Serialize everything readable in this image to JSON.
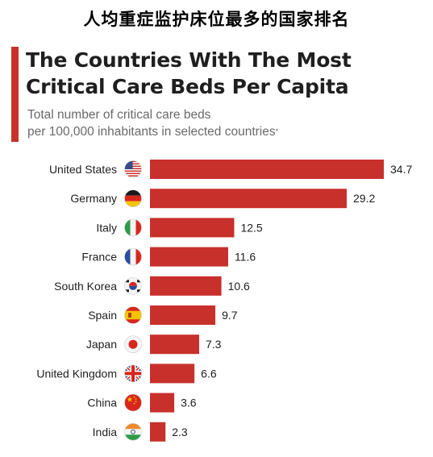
{
  "caption": "人均重症监护床位最多的国家排名",
  "chart_data": {
    "type": "bar",
    "orientation": "horizontal",
    "title_lines": [
      "The Countries With The Most",
      "Critical Care Beds Per Capita"
    ],
    "subtitle_lines": [
      "Total number of critical care beds",
      "per 100,000 inhabitants in selected countries"
    ],
    "subtitle_footnote_mark": "*",
    "categories": [
      "United States",
      "Germany",
      "Italy",
      "France",
      "South Korea",
      "Spain",
      "Japan",
      "United Kingdom",
      "China",
      "India"
    ],
    "values": [
      34.7,
      29.2,
      12.5,
      11.6,
      10.6,
      9.7,
      7.3,
      6.6,
      3.6,
      2.3
    ],
    "value_labels": [
      "34.7",
      "29.2",
      "12.5",
      "11.6",
      "10.6",
      "9.7",
      "7.3",
      "6.6",
      "3.6",
      "2.3"
    ],
    "flag_icons": [
      "us-flag-icon",
      "germany-flag-icon",
      "italy-flag-icon",
      "france-flag-icon",
      "south-korea-flag-icon",
      "spain-flag-icon",
      "japan-flag-icon",
      "uk-flag-icon",
      "china-flag-icon",
      "india-flag-icon"
    ],
    "xlim": [
      0,
      34.7
    ],
    "grid": false,
    "legend": "none",
    "bar_color": "#c8302c",
    "accent_color": "#c8302c"
  }
}
